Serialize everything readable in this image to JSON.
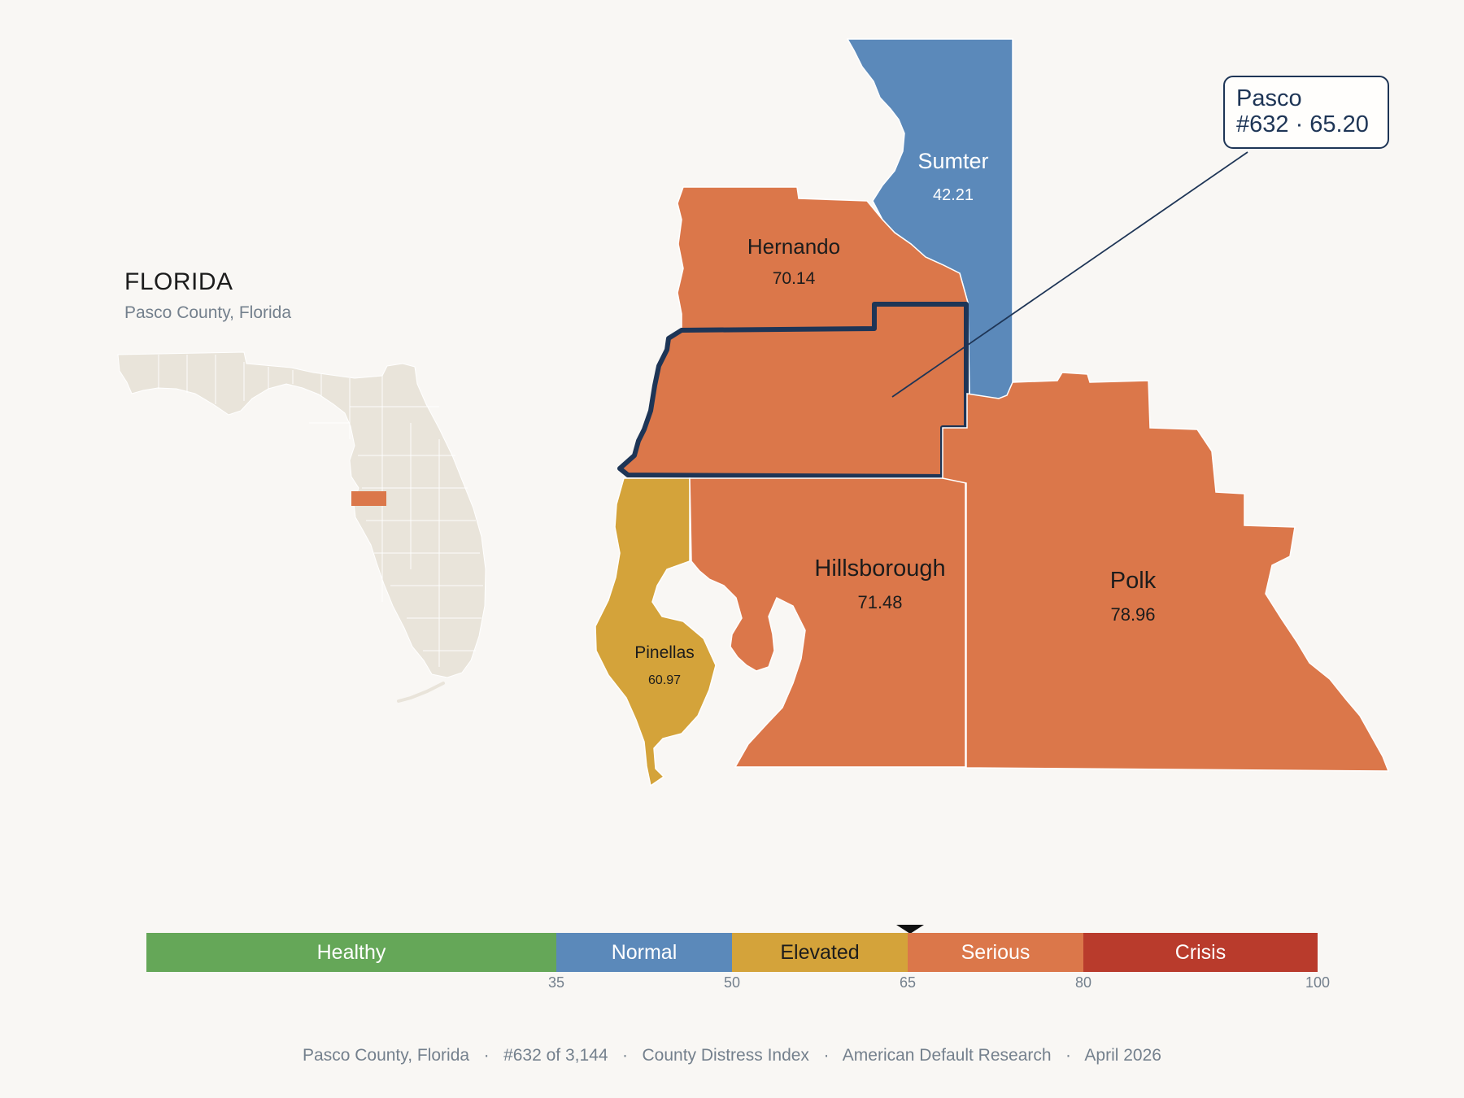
{
  "state": {
    "title": "FLORIDA",
    "subtitle": "Pasco County, Florida"
  },
  "callout": {
    "name": "Pasco",
    "detail": "#632 · 65.20"
  },
  "counties": [
    {
      "id": "sumter",
      "name": "Sumter",
      "score": "42.21",
      "category": "Normal"
    },
    {
      "id": "hernando",
      "name": "Hernando",
      "score": "70.14",
      "category": "Serious"
    },
    {
      "id": "pasco",
      "name": "Pasco",
      "score": "65.20",
      "category": "Serious",
      "highlighted": true
    },
    {
      "id": "pinellas",
      "name": "Pinellas",
      "score": "60.97",
      "category": "Elevated"
    },
    {
      "id": "hillsborough",
      "name": "Hillsborough",
      "score": "71.48",
      "category": "Serious"
    },
    {
      "id": "polk",
      "name": "Polk",
      "score": "78.96",
      "category": "Serious"
    }
  ],
  "legend": {
    "segments": [
      {
        "label": "Healthy",
        "from": 0,
        "to": 35,
        "color": "#65a758",
        "text_color": "#ffffff"
      },
      {
        "label": "Normal",
        "from": 35,
        "to": 50,
        "color": "#5b89ba",
        "text_color": "#ffffff"
      },
      {
        "label": "Elevated",
        "from": 50,
        "to": 65,
        "color": "#d4a33a",
        "text_color": "#1c1c1c"
      },
      {
        "label": "Serious",
        "from": 65,
        "to": 80,
        "color": "#db774a",
        "text_color": "#ffffff"
      },
      {
        "label": "Crisis",
        "from": 80,
        "to": 100,
        "color": "#b93b2c",
        "text_color": "#ffffff"
      }
    ],
    "ticks": [
      "35",
      "50",
      "65",
      "80",
      "100"
    ],
    "marker_value": 65.2
  },
  "footer": "Pasco County, Florida   ·   #632 of 3,144   ·   County Distress Index   ·   American Default Research   ·   April 2026",
  "colors": {
    "background": "#f9f7f4",
    "state_fill": "#e9e4da",
    "highlight_outline": "#1e3556",
    "normal": "#5b89ba",
    "elevated": "#d4a33a",
    "serious": "#db774a"
  }
}
